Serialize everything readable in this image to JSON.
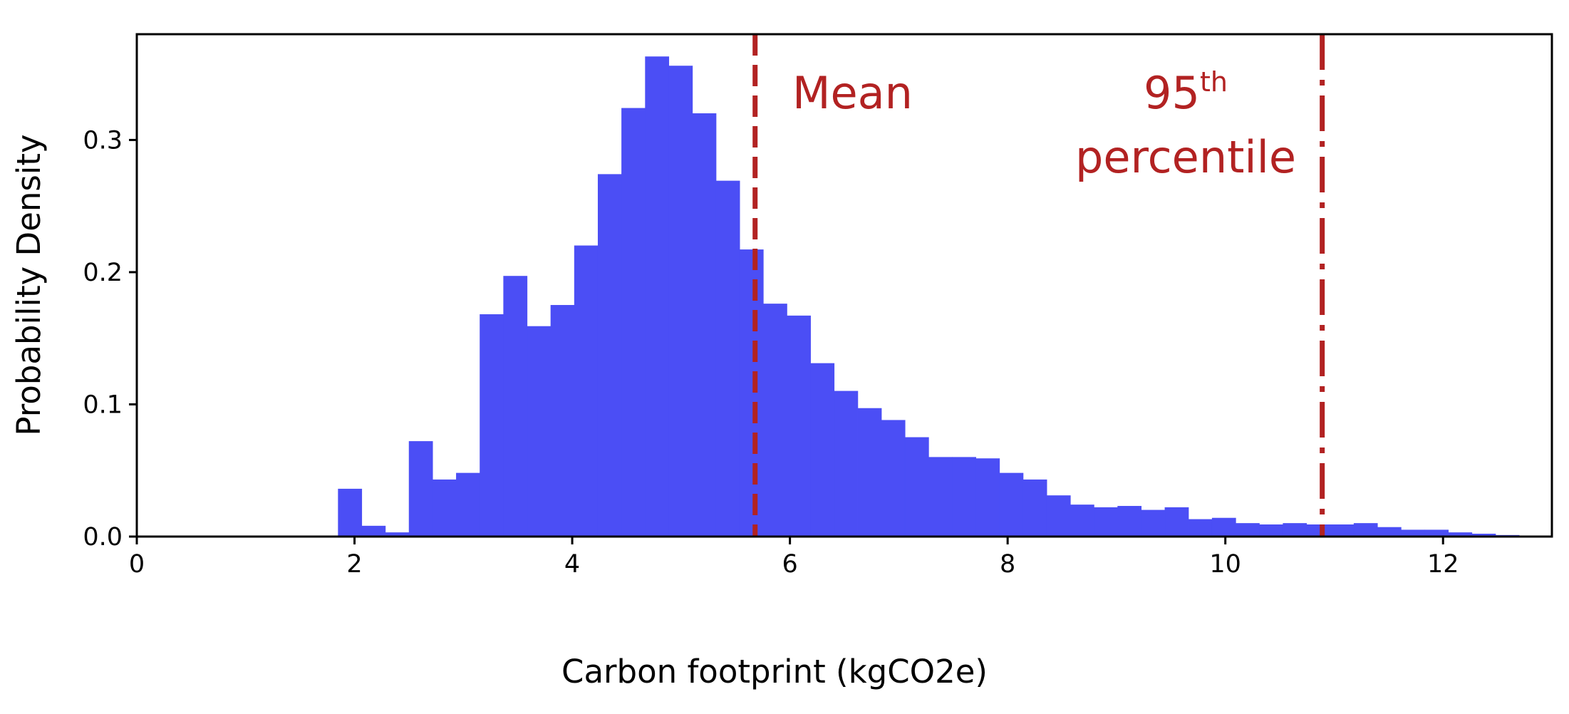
{
  "chart_data": {
    "type": "bar",
    "xlabel": "Carbon footprint (kgCO2e)",
    "ylabel": "Probability Density",
    "xlim": [
      0,
      13
    ],
    "ylim": [
      0,
      0.38
    ],
    "xticks": [
      {
        "value": 0,
        "label": "0"
      },
      {
        "value": 2,
        "label": "2"
      },
      {
        "value": 4,
        "label": "4"
      },
      {
        "value": 6,
        "label": "6"
      },
      {
        "value": 8,
        "label": "8"
      },
      {
        "value": 10,
        "label": "10"
      },
      {
        "value": 12,
        "label": "12"
      }
    ],
    "yticks": [
      {
        "value": 0.0,
        "label": "0.0"
      },
      {
        "value": 0.1,
        "label": "0.1"
      },
      {
        "value": 0.2,
        "label": "0.2"
      },
      {
        "value": 0.3,
        "label": "0.3"
      }
    ],
    "bin_start": 1.85,
    "bin_width": 0.217,
    "values": [
      0.036,
      0.008,
      0.003,
      0.072,
      0.043,
      0.048,
      0.168,
      0.197,
      0.159,
      0.175,
      0.22,
      0.274,
      0.324,
      0.363,
      0.356,
      0.32,
      0.269,
      0.217,
      0.176,
      0.167,
      0.131,
      0.11,
      0.097,
      0.088,
      0.075,
      0.06,
      0.06,
      0.059,
      0.048,
      0.043,
      0.031,
      0.024,
      0.022,
      0.023,
      0.02,
      0.022,
      0.013,
      0.014,
      0.01,
      0.009,
      0.01,
      0.009,
      0.009,
      0.01,
      0.007,
      0.005,
      0.005,
      0.003,
      0.002,
      0.001
    ],
    "bar_color": "#4b4ef5",
    "grid": false,
    "reference_lines": [
      {
        "name": "mean",
        "x": 5.68,
        "style": "dashed",
        "color": "#b22222"
      },
      {
        "name": "p95",
        "x": 10.89,
        "style": "dashdot",
        "color": "#b22222"
      }
    ],
    "annotations": {
      "mean": {
        "text": "Mean"
      },
      "p95": {
        "number": "95",
        "superscript": "th",
        "line2": "percentile"
      }
    }
  }
}
